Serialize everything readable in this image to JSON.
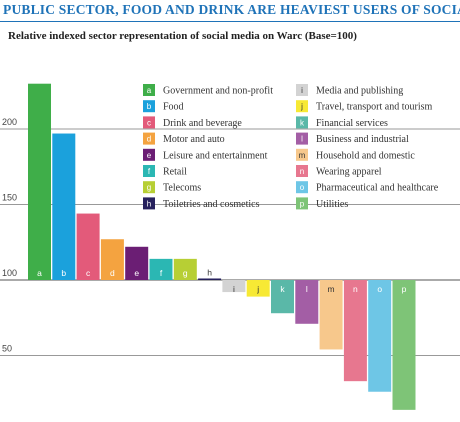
{
  "title": "PUBLIC SECTOR, FOOD AND DRINK ARE HEAVIEST USERS OF SOCIAL",
  "subtitle": "Relative indexed sector representation of social media on Warc (Base=100)",
  "chart_data": {
    "type": "bar",
    "title": "PUBLIC SECTOR, FOOD AND DRINK ARE HEAVIEST USERS OF SOCIAL",
    "subtitle": "Relative indexed sector representation of social media on Warc (Base=100)",
    "baseline": 100,
    "ylim": [
      13,
      232
    ],
    "yticks": [
      50,
      100,
      150,
      200
    ],
    "grid": true,
    "legend_position": "top-right",
    "categories": [
      "a",
      "b",
      "c",
      "d",
      "e",
      "f",
      "g",
      "h",
      "i",
      "j",
      "k",
      "l",
      "m",
      "n",
      "o",
      "p"
    ],
    "series": [
      {
        "labels": [
          "Government and non-profit",
          "Food",
          "Drink and beverage",
          "Motor and auto",
          "Leisure and entertainment",
          "Retail",
          "Telecoms",
          "Toiletries and cosmetics",
          "Media and publishing",
          "Travel, transport and tourism",
          "Financial services",
          "Business and industrial",
          "Household and domestic",
          "Wearing apparel",
          "Pharmaceutical and healthcare",
          "Utilities"
        ],
        "values": [
          230,
          197,
          144,
          127,
          122,
          114,
          114,
          101,
          92,
          89,
          78,
          71,
          54,
          33,
          26,
          14
        ]
      }
    ],
    "colors": [
      "#3fae49",
      "#1ba1dc",
      "#e35a7a",
      "#f4a340",
      "#6b1e74",
      "#2bb7b3",
      "#b7cf34",
      "#26215d",
      "#d3d3d3",
      "#f7e934",
      "#5ab8a8",
      "#a35ea5",
      "#f7c88c",
      "#e7778f",
      "#6ec6e6",
      "#7ec477"
    ]
  }
}
